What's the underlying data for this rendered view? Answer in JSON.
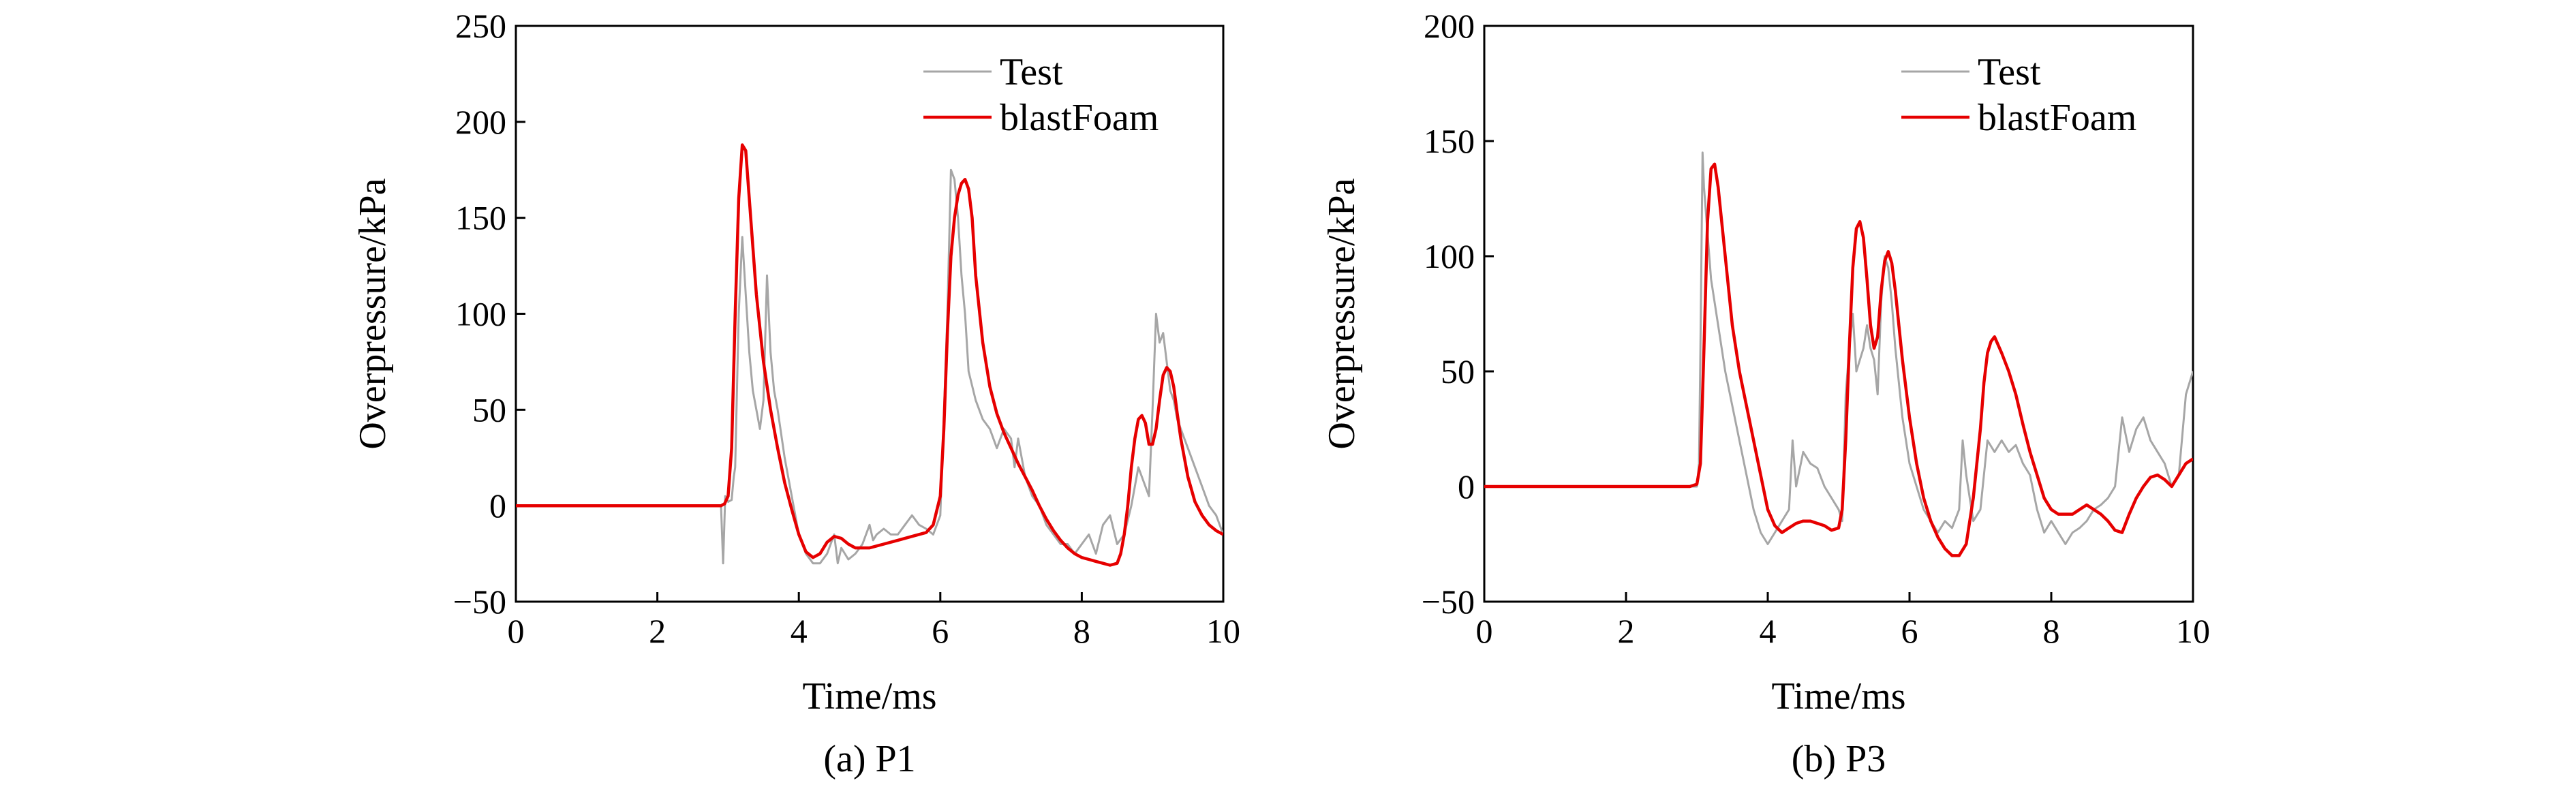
{
  "chart_data": [
    {
      "type": "line",
      "caption": "(a) P1",
      "xlabel": "Time/ms",
      "ylabel": "Overpressure/kPa",
      "xlim": [
        0,
        10
      ],
      "ylim": [
        -50,
        250
      ],
      "xticks": [
        0,
        2,
        4,
        6,
        8,
        10
      ],
      "yticks": [
        -50,
        0,
        50,
        100,
        150,
        200,
        250
      ],
      "ytick_labels": [
        "−50",
        "0",
        "50",
        "100",
        "150",
        "200",
        "250"
      ],
      "grid": false,
      "legend_position": "top-right",
      "series": [
        {
          "name": "Test",
          "color": "#a6a6a6",
          "x": [
            0,
            2.9,
            2.93,
            2.96,
            3.0,
            3.05,
            3.08,
            3.1,
            3.15,
            3.2,
            3.25,
            3.3,
            3.35,
            3.4,
            3.45,
            3.5,
            3.55,
            3.6,
            3.65,
            3.7,
            3.8,
            3.9,
            4.0,
            4.1,
            4.2,
            4.3,
            4.4,
            4.5,
            4.55,
            4.6,
            4.7,
            4.8,
            4.9,
            5.0,
            5.05,
            5.1,
            5.2,
            5.3,
            5.4,
            5.5,
            5.6,
            5.7,
            5.8,
            5.9,
            6.0,
            6.1,
            6.15,
            6.2,
            6.25,
            6.3,
            6.35,
            6.4,
            6.5,
            6.6,
            6.7,
            6.8,
            6.9,
            7.0,
            7.05,
            7.1,
            7.2,
            7.3,
            7.4,
            7.5,
            7.6,
            7.7,
            7.8,
            7.9,
            8.0,
            8.1,
            8.2,
            8.3,
            8.4,
            8.5,
            8.6,
            8.7,
            8.8,
            8.85,
            8.9,
            8.95,
            9.0,
            9.05,
            9.1,
            9.15,
            9.2,
            9.25,
            9.3,
            9.35,
            9.4,
            9.5,
            9.6,
            9.7,
            9.8,
            9.9,
            10.0
          ],
          "y": [
            0,
            0,
            -30,
            5,
            2,
            3,
            15,
            20,
            100,
            140,
            110,
            80,
            60,
            50,
            40,
            55,
            120,
            80,
            60,
            50,
            25,
            5,
            -15,
            -25,
            -30,
            -30,
            -25,
            -15,
            -30,
            -22,
            -28,
            -25,
            -20,
            -10,
            -18,
            -15,
            -12,
            -15,
            -15,
            -10,
            -5,
            -10,
            -12,
            -15,
            -5,
            100,
            175,
            170,
            150,
            120,
            100,
            70,
            55,
            45,
            40,
            30,
            40,
            35,
            20,
            35,
            15,
            5,
            0,
            -10,
            -15,
            -20,
            -20,
            -25,
            -20,
            -15,
            -25,
            -10,
            -5,
            -20,
            -15,
            0,
            20,
            15,
            10,
            5,
            50,
            100,
            85,
            90,
            75,
            60,
            55,
            45,
            40,
            30,
            20,
            10,
            0,
            -5,
            -15
          ]
        },
        {
          "name": "blastFoam",
          "color": "#e60000",
          "x": [
            0,
            2.8,
            2.9,
            2.95,
            3.0,
            3.05,
            3.1,
            3.15,
            3.2,
            3.25,
            3.3,
            3.4,
            3.5,
            3.6,
            3.7,
            3.8,
            3.9,
            4.0,
            4.1,
            4.2,
            4.3,
            4.4,
            4.5,
            4.6,
            4.7,
            4.8,
            5.0,
            5.2,
            5.4,
            5.6,
            5.8,
            5.9,
            6.0,
            6.05,
            6.1,
            6.15,
            6.2,
            6.25,
            6.3,
            6.35,
            6.4,
            6.45,
            6.5,
            6.6,
            6.7,
            6.8,
            6.9,
            7.0,
            7.1,
            7.2,
            7.3,
            7.4,
            7.5,
            7.6,
            7.7,
            7.8,
            7.9,
            8.0,
            8.1,
            8.2,
            8.3,
            8.4,
            8.5,
            8.55,
            8.6,
            8.65,
            8.7,
            8.75,
            8.8,
            8.85,
            8.9,
            8.95,
            9.0,
            9.05,
            9.1,
            9.15,
            9.2,
            9.25,
            9.3,
            9.35,
            9.4,
            9.5,
            9.6,
            9.7,
            9.8,
            9.9,
            10.0
          ],
          "y": [
            0,
            0,
            0,
            1,
            5,
            30,
            100,
            160,
            188,
            185,
            160,
            110,
            75,
            50,
            30,
            12,
            -2,
            -15,
            -24,
            -27,
            -25,
            -19,
            -16,
            -17,
            -20,
            -22,
            -22,
            -20,
            -18,
            -16,
            -14,
            -10,
            5,
            40,
            90,
            130,
            150,
            162,
            168,
            170,
            165,
            150,
            120,
            85,
            62,
            48,
            38,
            30,
            22,
            15,
            8,
            0,
            -7,
            -13,
            -18,
            -22,
            -25,
            -27,
            -28,
            -29,
            -30,
            -31,
            -30,
            -25,
            -15,
            0,
            20,
            35,
            45,
            47,
            43,
            32,
            32,
            40,
            55,
            68,
            72,
            70,
            62,
            48,
            35,
            15,
            2,
            -5,
            -10,
            -13,
            -15
          ]
        }
      ]
    },
    {
      "type": "line",
      "caption": "(b) P3",
      "xlabel": "Time/ms",
      "ylabel": "Overpressure/kPa",
      "xlim": [
        0,
        10
      ],
      "ylim": [
        -50,
        200
      ],
      "xticks": [
        0,
        2,
        4,
        6,
        8,
        10
      ],
      "yticks": [
        -50,
        0,
        50,
        100,
        150,
        200
      ],
      "ytick_labels": [
        "−50",
        "0",
        "50",
        "100",
        "150",
        "200"
      ],
      "grid": false,
      "legend_position": "top-right",
      "series": [
        {
          "name": "Test",
          "color": "#a6a6a6",
          "x": [
            0,
            3.0,
            3.03,
            3.05,
            3.08,
            3.1,
            3.15,
            3.2,
            3.3,
            3.4,
            3.5,
            3.6,
            3.7,
            3.8,
            3.9,
            4.0,
            4.1,
            4.2,
            4.3,
            4.35,
            4.4,
            4.5,
            4.6,
            4.7,
            4.8,
            4.9,
            5.0,
            5.05,
            5.1,
            5.15,
            5.2,
            5.25,
            5.3,
            5.35,
            5.4,
            5.45,
            5.5,
            5.55,
            5.6,
            5.65,
            5.7,
            5.75,
            5.8,
            5.9,
            6.0,
            6.1,
            6.2,
            6.3,
            6.4,
            6.5,
            6.6,
            6.7,
            6.75,
            6.8,
            6.9,
            7.0,
            7.1,
            7.2,
            7.3,
            7.4,
            7.5,
            7.6,
            7.7,
            7.8,
            7.9,
            8.0,
            8.1,
            8.2,
            8.3,
            8.4,
            8.5,
            8.6,
            8.7,
            8.8,
            8.9,
            9.0,
            9.1,
            9.2,
            9.3,
            9.4,
            9.5,
            9.6,
            9.7,
            9.8,
            9.9,
            10.0
          ],
          "y": [
            0,
            0,
            10,
            60,
            145,
            130,
            110,
            90,
            70,
            50,
            35,
            20,
            5,
            -10,
            -20,
            -25,
            -20,
            -15,
            -10,
            20,
            0,
            15,
            10,
            8,
            0,
            -5,
            -10,
            -15,
            40,
            60,
            75,
            50,
            55,
            60,
            70,
            60,
            55,
            40,
            80,
            100,
            95,
            80,
            60,
            30,
            10,
            0,
            -10,
            -15,
            -20,
            -15,
            -18,
            -10,
            20,
            5,
            -15,
            -10,
            20,
            15,
            20,
            15,
            18,
            10,
            5,
            -10,
            -20,
            -15,
            -20,
            -25,
            -20,
            -18,
            -15,
            -10,
            -8,
            -5,
            0,
            30,
            15,
            25,
            30,
            20,
            15,
            10,
            0,
            5,
            40,
            50
          ]
        },
        {
          "name": "blastFoam",
          "color": "#e60000",
          "x": [
            0,
            2.9,
            3.0,
            3.05,
            3.1,
            3.15,
            3.2,
            3.25,
            3.3,
            3.4,
            3.5,
            3.6,
            3.7,
            3.8,
            3.9,
            4.0,
            4.1,
            4.2,
            4.3,
            4.4,
            4.5,
            4.6,
            4.8,
            4.9,
            5.0,
            5.05,
            5.1,
            5.15,
            5.2,
            5.25,
            5.3,
            5.35,
            5.4,
            5.45,
            5.5,
            5.55,
            5.6,
            5.65,
            5.7,
            5.75,
            5.8,
            5.9,
            6.0,
            6.1,
            6.2,
            6.3,
            6.4,
            6.5,
            6.6,
            6.7,
            6.8,
            6.9,
            7.0,
            7.05,
            7.1,
            7.15,
            7.2,
            7.3,
            7.4,
            7.5,
            7.6,
            7.7,
            7.8,
            7.9,
            8.0,
            8.1,
            8.2,
            8.3,
            8.4,
            8.5,
            8.6,
            8.7,
            8.8,
            8.9,
            9.0,
            9.1,
            9.2,
            9.3,
            9.4,
            9.5,
            9.6,
            9.7,
            9.8,
            9.9,
            10.0
          ],
          "y": [
            0,
            0,
            1,
            10,
            60,
            115,
            138,
            140,
            130,
            100,
            70,
            50,
            35,
            20,
            5,
            -10,
            -17,
            -20,
            -18,
            -16,
            -15,
            -15,
            -17,
            -19,
            -18,
            -10,
            20,
            60,
            95,
            112,
            115,
            108,
            90,
            70,
            60,
            65,
            85,
            98,
            102,
            97,
            85,
            55,
            30,
            10,
            -5,
            -15,
            -22,
            -27,
            -30,
            -30,
            -25,
            -5,
            25,
            45,
            58,
            63,
            65,
            58,
            50,
            40,
            27,
            15,
            5,
            -5,
            -10,
            -12,
            -12,
            -12,
            -10,
            -8,
            -10,
            -12,
            -15,
            -19,
            -20,
            -12,
            -5,
            0,
            4,
            5,
            3,
            0,
            5,
            10,
            12
          ]
        }
      ]
    }
  ]
}
